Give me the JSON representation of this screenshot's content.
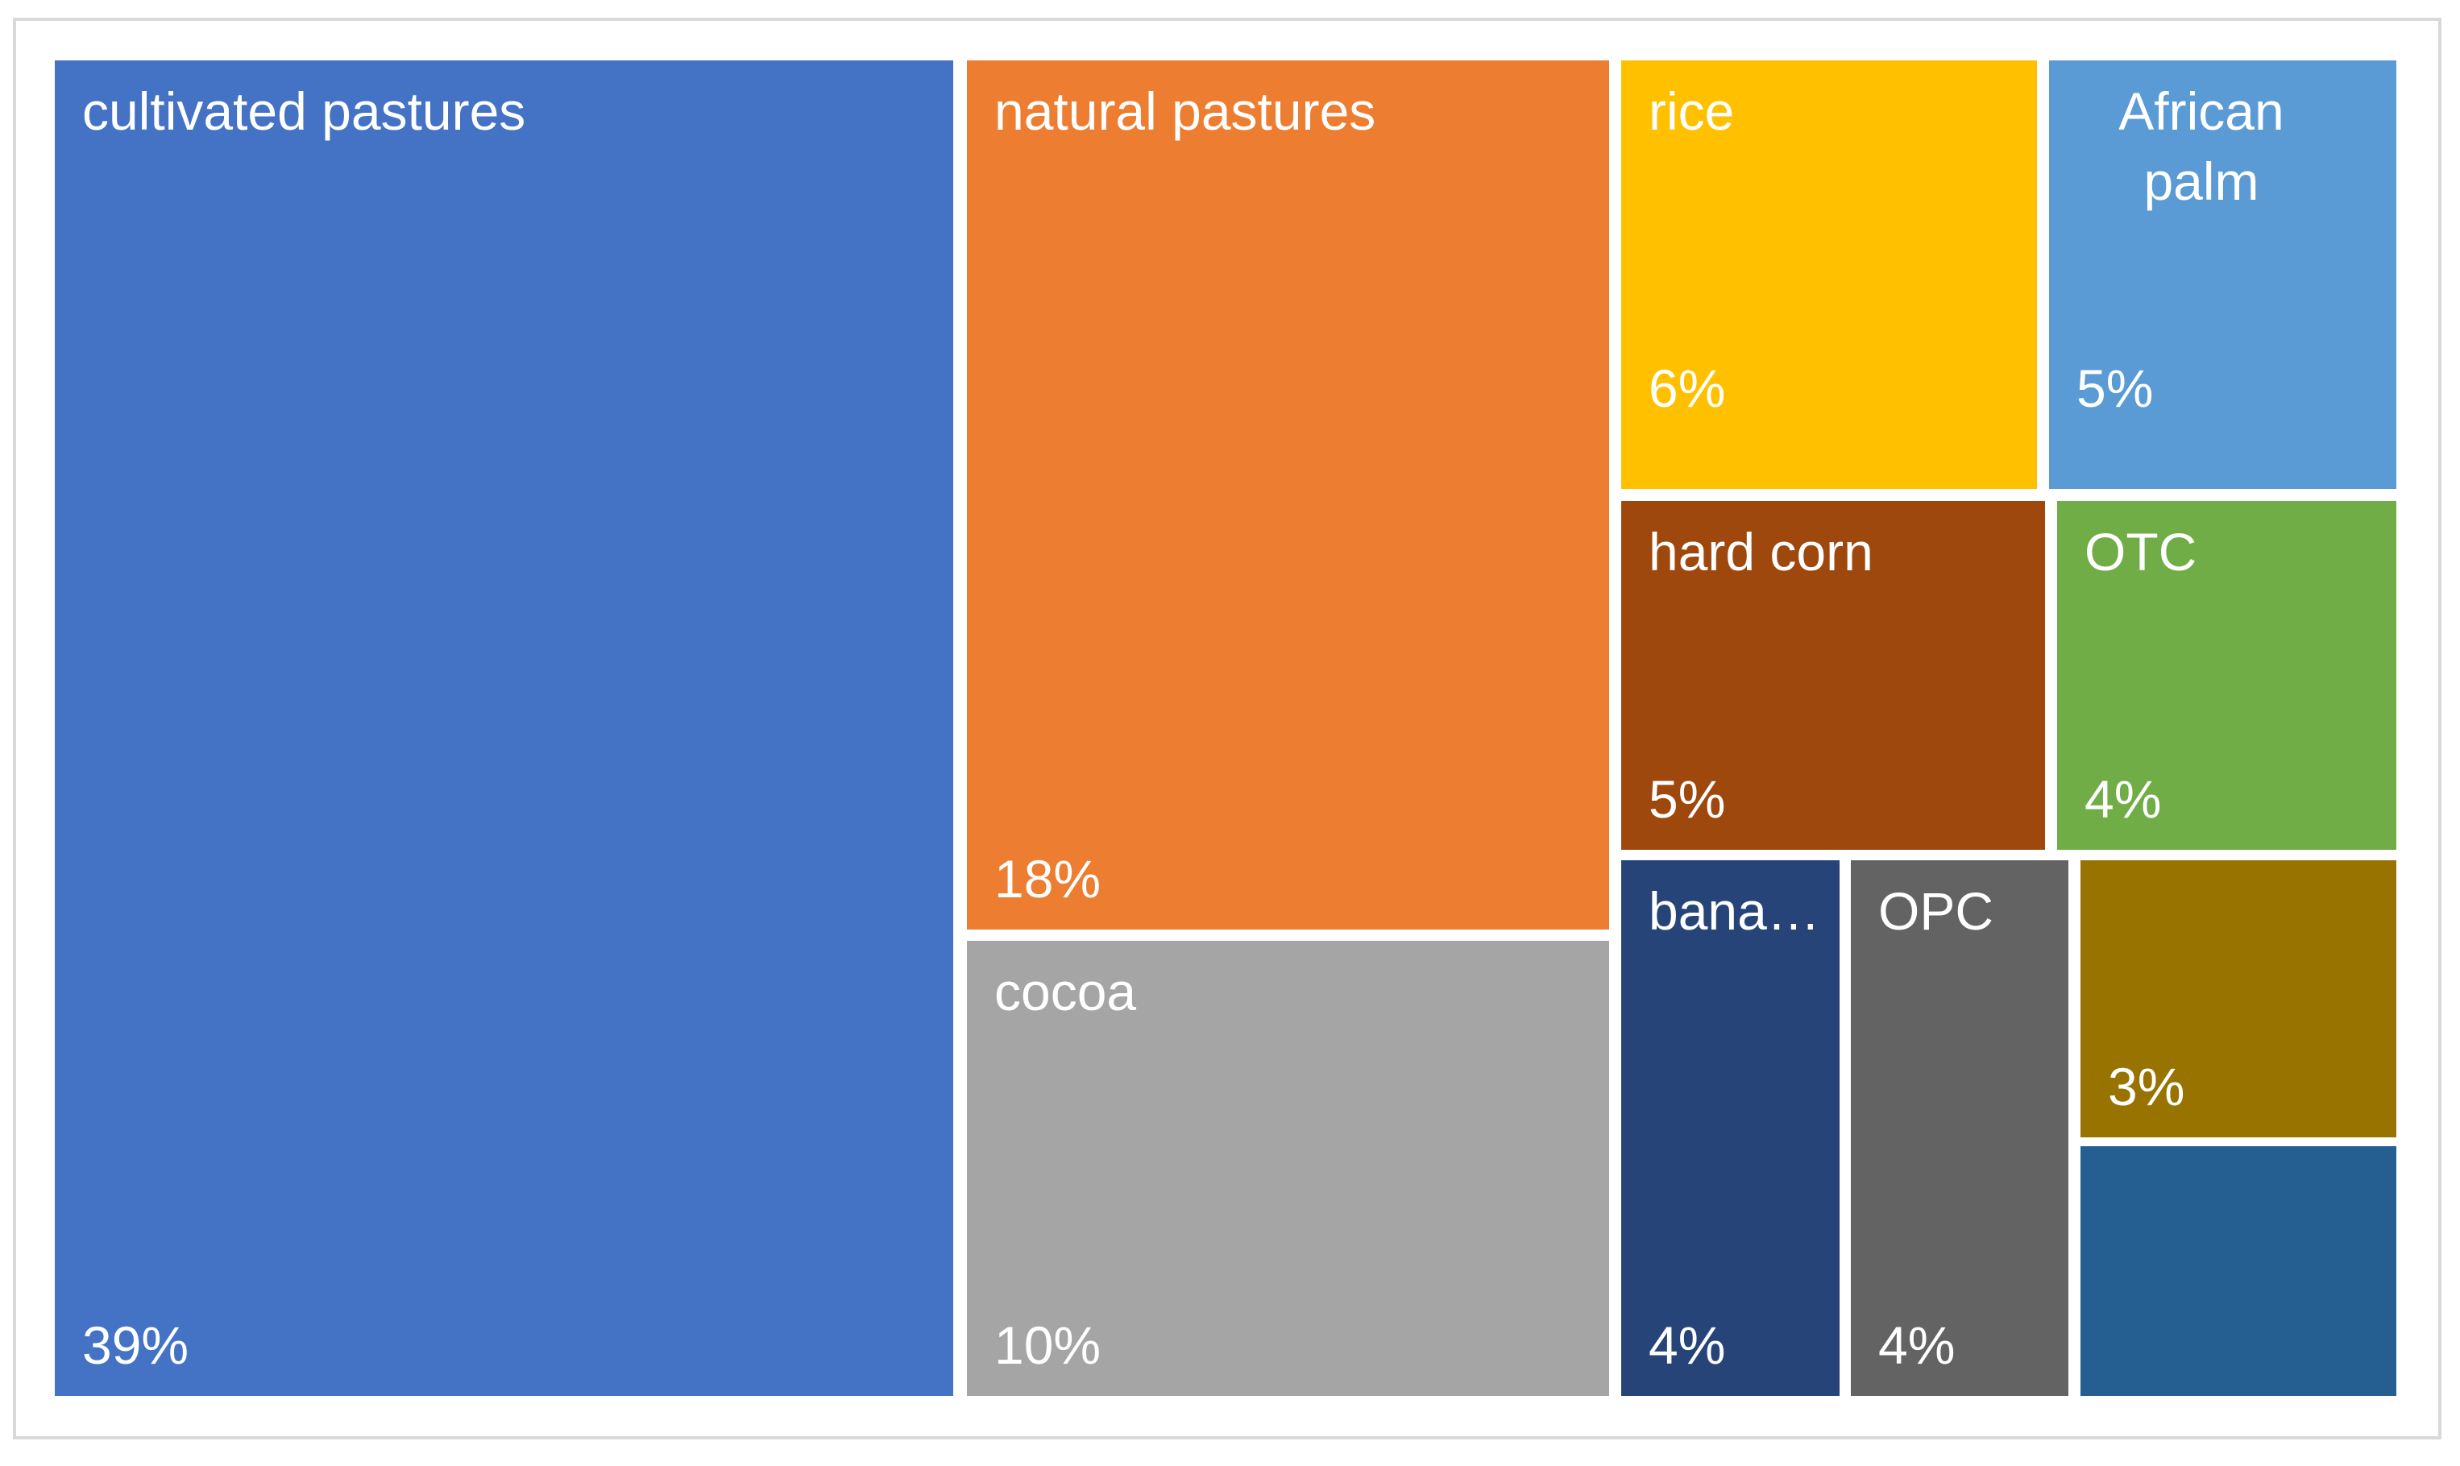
{
  "chart_frame": {
    "border_color": "#D9D9D9",
    "background_color": "#FFFFFF",
    "label_text_color": "#FFFFFF"
  },
  "chart_data": {
    "type": "treemap",
    "title": "",
    "value_format": "percent",
    "legend": "none",
    "gaps_between_tiles": true,
    "points": [
      {
        "label": "cultivated pastures",
        "display_label": "cultivated pastures",
        "pct_label": "39%",
        "value": 39,
        "color": "#4472C4"
      },
      {
        "label": "natural pastures",
        "display_label": "natural pastures",
        "pct_label": "18%",
        "value": 18,
        "color": "#ED7D31"
      },
      {
        "label": "cocoa",
        "display_label": "cocoa",
        "pct_label": "10%",
        "value": 10,
        "color": "#A5A5A5"
      },
      {
        "label": "rice",
        "display_label": "rice",
        "pct_label": "6%",
        "value": 6,
        "color": "#FFC000"
      },
      {
        "label": "African palm",
        "display_label": "African palm",
        "pct_label": "5%",
        "value": 5,
        "color": "#5B9BD5"
      },
      {
        "label": "hard corn",
        "display_label": "hard corn",
        "pct_label": "5%",
        "value": 5,
        "color": "#9E480E"
      },
      {
        "label": "OTC",
        "display_label": "OTC",
        "pct_label": "4%",
        "value": 4,
        "color": "#70AD47"
      },
      {
        "label": "banana",
        "display_label": "bana…",
        "pct_label": "4%",
        "value": 4,
        "color": "#264478",
        "label_truncated": true
      },
      {
        "label": "OPC",
        "display_label": "OPC",
        "pct_label": "4%",
        "value": 4,
        "color": "#636363"
      },
      {
        "label": "",
        "display_label": "",
        "pct_label": "3%",
        "value": 3,
        "color": "#997300",
        "name_hidden": true
      },
      {
        "label": "",
        "display_label": "",
        "pct_label": "",
        "value": 2,
        "color": "#255E91",
        "name_hidden": true,
        "value_estimated": true
      }
    ]
  }
}
